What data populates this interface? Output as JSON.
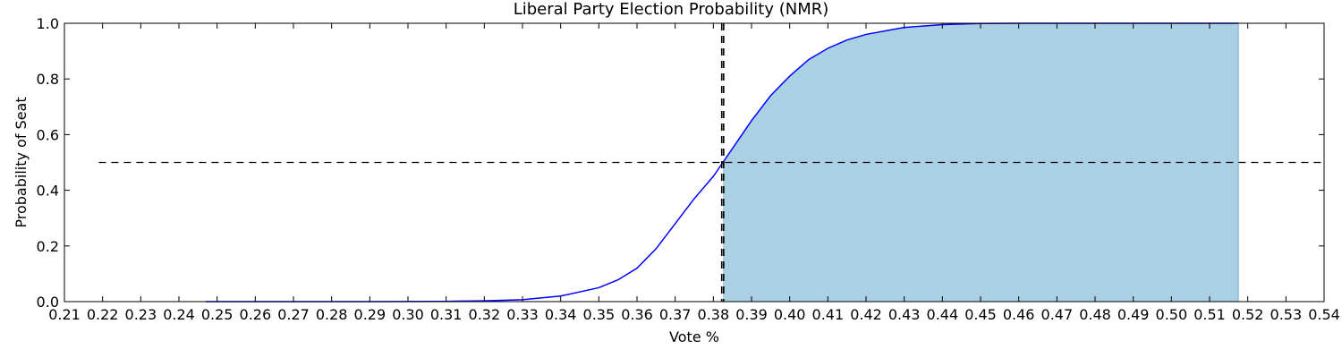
{
  "chart_data": {
    "type": "area",
    "title": "Liberal Party Election Probability (NMR)",
    "xlabel": "Vote %",
    "ylabel": "Probability of Seat",
    "xlim": [
      0.21,
      0.54
    ],
    "ylim": [
      0.0,
      1.0
    ],
    "x_ticks": [
      "0.21",
      "0.22",
      "0.23",
      "0.24",
      "0.25",
      "0.26",
      "0.27",
      "0.28",
      "0.29",
      "0.30",
      "0.31",
      "0.32",
      "0.33",
      "0.34",
      "0.35",
      "0.36",
      "0.37",
      "0.38",
      "0.39",
      "0.40",
      "0.41",
      "0.42",
      "0.43",
      "0.44",
      "0.45",
      "0.46",
      "0.47",
      "0.48",
      "0.49",
      "0.50",
      "0.51",
      "0.52",
      "0.53",
      "0.54"
    ],
    "y_ticks": [
      "0.0",
      "0.2",
      "0.4",
      "0.6",
      "0.8",
      "1.0"
    ],
    "grid": false,
    "series": [
      {
        "type": "line",
        "color": "#0000ff",
        "x": [
          0.247,
          0.27,
          0.29,
          0.31,
          0.32,
          0.33,
          0.34,
          0.35,
          0.355,
          0.36,
          0.365,
          0.37,
          0.375,
          0.38,
          0.3825,
          0.385,
          0.39,
          0.395,
          0.4,
          0.405,
          0.41,
          0.415,
          0.42,
          0.43,
          0.44,
          0.45,
          0.46,
          0.47,
          0.48,
          0.49,
          0.5,
          0.5175
        ],
        "y": [
          0.0,
          0.0,
          0.0,
          0.001,
          0.003,
          0.007,
          0.02,
          0.05,
          0.078,
          0.12,
          0.19,
          0.28,
          0.37,
          0.45,
          0.5,
          0.55,
          0.65,
          0.74,
          0.81,
          0.87,
          0.91,
          0.94,
          0.96,
          0.985,
          0.995,
          0.999,
          1.0,
          1.0,
          1.0,
          1.0,
          1.0,
          1.0
        ]
      },
      {
        "type": "fill",
        "color": "#abd0e3",
        "x_from": 0.3825,
        "x_to": 0.5175,
        "edge_color": "#8cbcdb"
      }
    ],
    "reference_lines": [
      {
        "orientation": "horizontal",
        "y": 0.5,
        "x_from": 0.219,
        "x_to": 0.54,
        "style": "dashed",
        "color": "#000000"
      },
      {
        "orientation": "vertical",
        "x": 0.3822,
        "style": "dashed",
        "color": "#000000"
      },
      {
        "orientation": "vertical",
        "x": 0.3827,
        "style": "dashed",
        "color": "#000000"
      }
    ]
  }
}
